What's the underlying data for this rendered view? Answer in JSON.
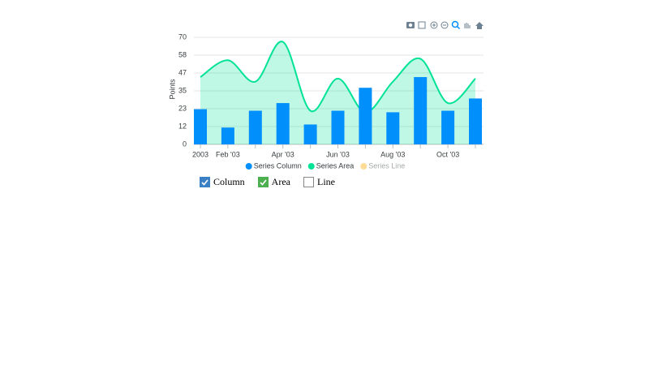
{
  "chart_data": {
    "type": "bar-area",
    "y_axis_label": "Points",
    "categories": [
      "2003",
      "Feb '03",
      null,
      "Apr '03",
      null,
      "Jun '03",
      null,
      "Aug '03",
      null,
      "Oct '03",
      null
    ],
    "series": [
      {
        "name": "Series Column",
        "type": "bar",
        "color": "#008FFB",
        "values": [
          23,
          11,
          22,
          27,
          13,
          22,
          37,
          21,
          44,
          22,
          30
        ]
      },
      {
        "name": "Series Area",
        "type": "area",
        "color": "#00E396",
        "values": [
          44,
          55,
          41,
          67,
          22,
          43,
          21,
          41,
          56,
          27,
          43
        ]
      },
      {
        "name": "Series Line",
        "type": "line",
        "color": "#FEB019",
        "hidden": true
      }
    ],
    "ylim": [
      0,
      70
    ],
    "yticks": [
      0,
      {
        "value": 11.67,
        "label": "12"
      },
      {
        "value": 23.33,
        "label": "23"
      },
      35,
      {
        "value": 46.67,
        "label": "47"
      },
      {
        "value": 58.33,
        "label": "58"
      },
      70
    ],
    "grid": true
  },
  "controls": [
    {
      "label": "Column",
      "checked": true,
      "color": "#3b7fc4"
    },
    {
      "label": "Area",
      "checked": true,
      "color": "#4caf50"
    },
    {
      "label": "Line",
      "checked": false,
      "color": "#999999"
    }
  ]
}
